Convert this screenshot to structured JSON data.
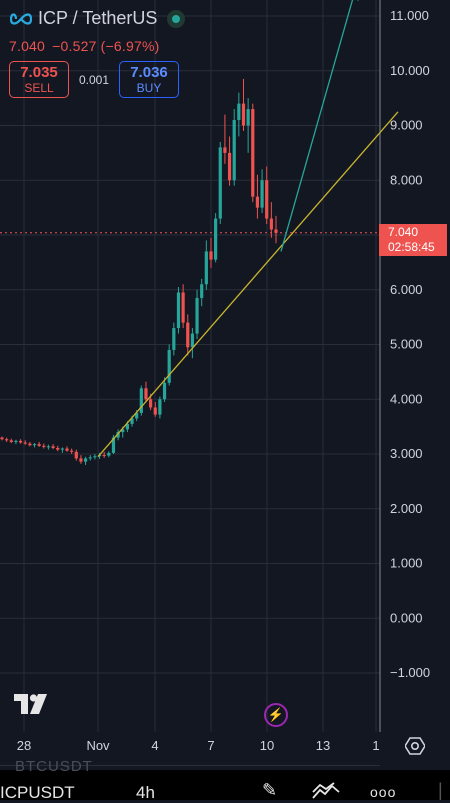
{
  "header": {
    "pair_title": "ICP / TetherUS",
    "last_price": "7.040",
    "change": "−0.527",
    "change_pct": "(−6.97%)",
    "sell_price": "7.035",
    "sell_label": "SELL",
    "spread": "0.001",
    "buy_price": "7.036",
    "buy_label": "BUY"
  },
  "price_tag": {
    "price": "7.040",
    "countdown": "02:58:45"
  },
  "colors": {
    "up": "#26a69a",
    "down": "#ef5350",
    "trendline": "#c9b52c",
    "arrow": "#26a69a",
    "background": "#131722"
  },
  "chart_data": {
    "type": "candlestick",
    "symbol": "ICPUSDT",
    "timeframe": "4h",
    "y_ticks": [
      "11.000",
      "10.000",
      "9.000",
      "8.000",
      "7.000",
      "6.000",
      "5.000",
      "4.000",
      "3.000",
      "2.000",
      "1.000",
      "0.000",
      "−1.000"
    ],
    "x_ticks": [
      "28",
      "Nov",
      "4",
      "7",
      "10",
      "13",
      "1"
    ],
    "ylim": [
      -1.6,
      11.3
    ],
    "last_price": 7.04,
    "grid": true,
    "trendline": {
      "from": [
        "Oct 31",
        2.95
      ],
      "to": [
        "Nov 13",
        9.25
      ]
    },
    "projection_arrow": {
      "from": [
        "Nov 10",
        6.7
      ],
      "to": [
        "Nov 13",
        11.3
      ]
    },
    "candles_ohlc": [
      [
        3.3,
        3.32,
        3.25,
        3.27
      ],
      [
        3.27,
        3.3,
        3.22,
        3.25
      ],
      [
        3.25,
        3.28,
        3.2,
        3.22
      ],
      [
        3.22,
        3.26,
        3.18,
        3.24
      ],
      [
        3.24,
        3.27,
        3.19,
        3.21
      ],
      [
        3.21,
        3.25,
        3.17,
        3.19
      ],
      [
        3.19,
        3.22,
        3.14,
        3.16
      ],
      [
        3.16,
        3.2,
        3.12,
        3.18
      ],
      [
        3.18,
        3.22,
        3.13,
        3.15
      ],
      [
        3.15,
        3.19,
        3.1,
        3.13
      ],
      [
        3.13,
        3.17,
        3.08,
        3.14
      ],
      [
        3.14,
        3.18,
        3.09,
        3.11
      ],
      [
        3.11,
        3.15,
        3.05,
        3.08
      ],
      [
        3.08,
        3.12,
        3.02,
        3.1
      ],
      [
        3.1,
        3.14,
        3.04,
        3.06
      ],
      [
        3.06,
        3.1,
        3.0,
        3.04
      ],
      [
        3.04,
        3.08,
        2.88,
        2.92
      ],
      [
        2.92,
        2.98,
        2.82,
        2.86
      ],
      [
        2.86,
        2.95,
        2.8,
        2.92
      ],
      [
        2.92,
        2.98,
        2.88,
        2.94
      ],
      [
        2.94,
        3.0,
        2.9,
        2.96
      ],
      [
        2.96,
        3.02,
        2.91,
        2.98
      ],
      [
        2.98,
        3.04,
        2.93,
        2.97
      ],
      [
        2.97,
        3.05,
        2.94,
        3.02
      ],
      [
        3.02,
        3.35,
        3.0,
        3.3
      ],
      [
        3.3,
        3.45,
        3.25,
        3.4
      ],
      [
        3.4,
        3.5,
        3.3,
        3.45
      ],
      [
        3.45,
        3.6,
        3.4,
        3.55
      ],
      [
        3.55,
        3.7,
        3.5,
        3.65
      ],
      [
        3.65,
        3.8,
        3.6,
        3.75
      ],
      [
        3.75,
        4.25,
        3.7,
        4.2
      ],
      [
        4.2,
        4.32,
        3.95,
        4.0
      ],
      [
        4.0,
        4.1,
        3.8,
        3.85
      ],
      [
        3.85,
        3.95,
        3.68,
        3.72
      ],
      [
        3.72,
        4.05,
        3.65,
        4.0
      ],
      [
        4.0,
        4.4,
        3.95,
        4.3
      ],
      [
        4.3,
        5.0,
        4.25,
        4.9
      ],
      [
        4.9,
        5.4,
        4.8,
        5.3
      ],
      [
        5.3,
        6.05,
        5.2,
        5.95
      ],
      [
        5.95,
        6.1,
        5.3,
        5.4
      ],
      [
        5.4,
        5.55,
        4.8,
        4.95
      ],
      [
        4.95,
        5.3,
        4.75,
        5.2
      ],
      [
        5.2,
        6.0,
        5.1,
        5.85
      ],
      [
        5.85,
        6.2,
        5.7,
        6.1
      ],
      [
        6.1,
        6.9,
        6.0,
        6.7
      ],
      [
        6.7,
        6.95,
        6.4,
        6.55
      ],
      [
        6.55,
        7.4,
        6.5,
        7.3
      ],
      [
        7.3,
        8.7,
        7.2,
        8.6
      ],
      [
        8.6,
        9.2,
        8.3,
        8.5
      ],
      [
        8.5,
        8.8,
        7.9,
        8.0
      ],
      [
        8.0,
        9.3,
        7.9,
        9.1
      ],
      [
        9.1,
        9.6,
        8.8,
        9.4
      ],
      [
        9.4,
        9.85,
        8.9,
        9.0
      ],
      [
        9.0,
        9.5,
        8.5,
        9.3
      ],
      [
        9.3,
        9.4,
        7.6,
        7.7
      ],
      [
        7.7,
        8.1,
        7.3,
        7.5
      ],
      [
        7.5,
        8.2,
        7.4,
        8.0
      ],
      [
        8.0,
        8.25,
        7.2,
        7.3
      ],
      [
        7.3,
        7.6,
        6.95,
        7.1
      ],
      [
        7.1,
        7.35,
        6.85,
        7.04
      ]
    ]
  },
  "bottom_bar": {
    "ghost_symbol": "BTCUSDT",
    "symbol": "ICPUSDT",
    "timeframe": "4h",
    "more": "ooo"
  }
}
